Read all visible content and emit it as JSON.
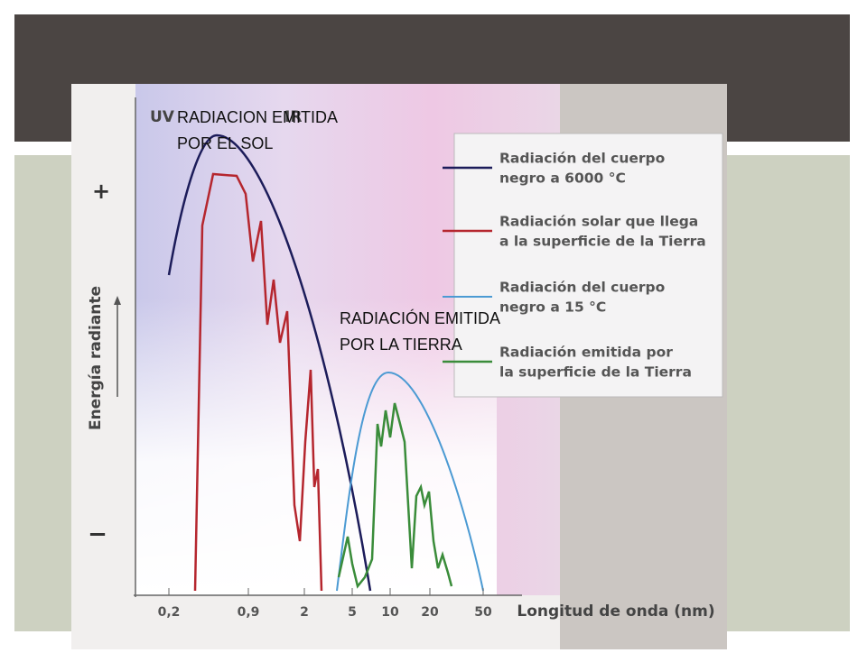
{
  "slide": {
    "overlay_labels": [
      [
        "RADIACION EMITIDA",
        "POR EL SOL"
      ],
      [
        "RADIACIÓN EMITIDA",
        "POR LA TIERRA"
      ]
    ]
  },
  "figure": {
    "bands": [
      "UV",
      "IR"
    ],
    "y_axis": {
      "label": "Energía radiante",
      "plus": "+",
      "minus": "−"
    },
    "x_axis": {
      "label": "Longitud de onda (nm)",
      "ticks": [
        "0,2",
        "0,9",
        "2",
        "5",
        "10",
        "20",
        "50"
      ]
    },
    "legend": [
      [
        "Radiación del cuerpo",
        "negro a 6000 °C"
      ],
      [
        "Radiación solar que llega",
        "a la superficie de la Tierra"
      ],
      [
        "Radiación del cuerpo",
        "negro a 15 °C"
      ],
      [
        "Radiación emitida por",
        "la superficie de la Tierra"
      ]
    ]
  }
}
